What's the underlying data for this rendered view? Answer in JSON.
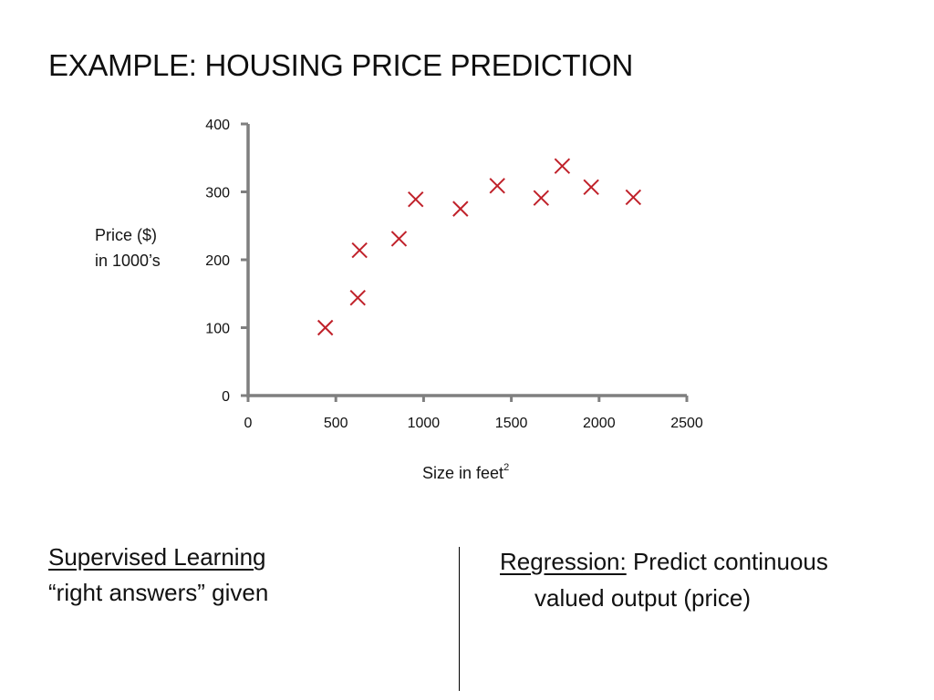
{
  "slide": {
    "title": "EXAMPLE: HOUSING PRICE PREDICTION",
    "left": {
      "heading": "Supervised Learning",
      "line": "“right answers” given"
    },
    "right": {
      "heading": "Regression:",
      "text_1": "Predict continuous",
      "text_2": "valued output (price)"
    }
  },
  "chart_data": {
    "type": "scatter",
    "title": "",
    "xlabel_main": "Size in feet",
    "xlabel_sup": "2",
    "ylabel_line1": "Price ($)",
    "ylabel_line2": "in 1000’s",
    "xlim": [
      0,
      2500
    ],
    "ylim": [
      0,
      400
    ],
    "xticks": [
      0,
      500,
      1000,
      1500,
      2000,
      2500
    ],
    "yticks": [
      0,
      100,
      200,
      300,
      400
    ],
    "grid": false,
    "marker": "x",
    "marker_color": "#c0212a",
    "axis_color": "#7f7f7f",
    "points": [
      {
        "x": 440,
        "y": 100
      },
      {
        "x": 625,
        "y": 144
      },
      {
        "x": 635,
        "y": 214
      },
      {
        "x": 860,
        "y": 231
      },
      {
        "x": 955,
        "y": 289
      },
      {
        "x": 1210,
        "y": 275
      },
      {
        "x": 1420,
        "y": 309
      },
      {
        "x": 1670,
        "y": 291
      },
      {
        "x": 1790,
        "y": 338
      },
      {
        "x": 1955,
        "y": 307
      },
      {
        "x": 2195,
        "y": 292
      }
    ]
  }
}
